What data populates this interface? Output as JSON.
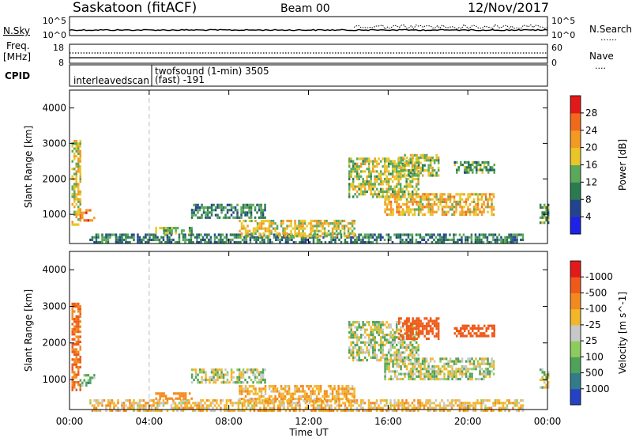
{
  "header": {
    "station": "Saskatoon (fitACF)",
    "beam": "Beam 00",
    "date": "12/Nov/2017"
  },
  "nsky_panel": {
    "left_label": "N.Sky",
    "left_tick_top": "10^5",
    "left_tick_bottom": "10^0",
    "right_tick_top": "10^5",
    "right_tick_bottom": "10^0",
    "right_label": "N.Search",
    "right_legend": "......"
  },
  "freq_panel": {
    "left_label": "Freq.",
    "left_unit": "[MHz]",
    "left_tick_top": "18",
    "left_tick_bottom": "8",
    "right_tick_top": "60",
    "right_tick_bottom": "0",
    "right_label": "Nave",
    "right_legend": "...."
  },
  "cpid_panel": {
    "label": "CPID",
    "programs": [
      {
        "name": "interleavedscan"
      },
      {
        "name": "twofsound (1-min) 3505"
      },
      {
        "name": "(fast) -191"
      }
    ]
  },
  "chart_data": [
    {
      "type": "heatmap",
      "quantity": "Power",
      "ylabel": "Slant Range [km]",
      "xlabel": "Time UT",
      "x_ticks": [
        "00:00",
        "04:00",
        "08:00",
        "12:00",
        "16:00",
        "20:00",
        "00:00"
      ],
      "y_ticks": [
        "1000",
        "2000",
        "3000",
        "4000"
      ],
      "ylim": [
        180,
        4500
      ],
      "xlim_hours": [
        0,
        24
      ],
      "colorbar": {
        "label": "Power [dB]",
        "ticks": [
          "4",
          "8",
          "12",
          "16",
          "20",
          "24",
          "28"
        ],
        "colors": [
          "#1e22e6",
          "#23438f",
          "#2c7a4f",
          "#5aa85a",
          "#e8c62a",
          "#f39a23",
          "#f06a1c",
          "#e31919"
        ]
      },
      "regions": [
        {
          "t": [
            0.1,
            0.5
          ],
          "r": [
            700,
            3100
          ],
          "value": 18
        },
        {
          "t": [
            0.5,
            1.2
          ],
          "r": [
            850,
            1150
          ],
          "value": 24
        },
        {
          "t": [
            1.0,
            22.8
          ],
          "r": [
            180,
            460
          ],
          "value": 10
        },
        {
          "t": [
            4.3,
            6.1
          ],
          "r": [
            480,
            650
          ],
          "value": 14
        },
        {
          "t": [
            6.1,
            9.8
          ],
          "r": [
            900,
            1300
          ],
          "value": 10
        },
        {
          "t": [
            8.5,
            14.3
          ],
          "r": [
            400,
            850
          ],
          "value": 18
        },
        {
          "t": [
            14.0,
            17.5
          ],
          "r": [
            1500,
            2600
          ],
          "value": 16
        },
        {
          "t": [
            15.8,
            21.3
          ],
          "r": [
            1000,
            1600
          ],
          "value": 20
        },
        {
          "t": [
            16.5,
            18.5
          ],
          "r": [
            2100,
            2700
          ],
          "value": 16
        },
        {
          "t": [
            19.3,
            21.3
          ],
          "r": [
            2200,
            2500
          ],
          "value": 12
        },
        {
          "t": [
            23.6,
            24.0
          ],
          "r": [
            800,
            1300
          ],
          "value": 12
        }
      ]
    },
    {
      "type": "heatmap",
      "quantity": "Velocity",
      "ylabel": "Slant Range [km]",
      "xlabel": "Time UT",
      "x_ticks": [
        "00:00",
        "04:00",
        "08:00",
        "12:00",
        "16:00",
        "20:00",
        "00:00"
      ],
      "y_ticks": [
        "1000",
        "2000",
        "3000",
        "4000"
      ],
      "ylim": [
        180,
        4500
      ],
      "xlim_hours": [
        0,
        24
      ],
      "colorbar": {
        "label": "Velocity [m s^-1]",
        "ticks": [
          "1000",
          "500",
          "100",
          "25",
          "-25",
          "-100",
          "-500",
          "-1000"
        ],
        "colors": [
          "#2542c4",
          "#317b8a",
          "#4fa259",
          "#8ccc5d",
          "#c8c8c8",
          "#f2b62a",
          "#f38a20",
          "#ef5a1a",
          "#e21a1a"
        ]
      },
      "regions": [
        {
          "t": [
            0.1,
            0.5
          ],
          "r": [
            700,
            3100
          ],
          "value": -300
        },
        {
          "t": [
            0.5,
            1.2
          ],
          "r": [
            850,
            1150
          ],
          "value": 50
        },
        {
          "t": [
            1.0,
            22.8
          ],
          "r": [
            180,
            460
          ],
          "value": -60
        },
        {
          "t": [
            4.3,
            6.1
          ],
          "r": [
            480,
            650
          ],
          "value": -200
        },
        {
          "t": [
            6.1,
            9.8
          ],
          "r": [
            900,
            1300
          ],
          "value": 0
        },
        {
          "t": [
            8.5,
            14.3
          ],
          "r": [
            400,
            850
          ],
          "value": -80
        },
        {
          "t": [
            14.0,
            17.5
          ],
          "r": [
            1500,
            2600
          ],
          "value": 0
        },
        {
          "t": [
            15.8,
            21.3
          ],
          "r": [
            1000,
            1600
          ],
          "value": 0
        },
        {
          "t": [
            16.5,
            18.5
          ],
          "r": [
            2100,
            2700
          ],
          "value": -400
        },
        {
          "t": [
            19.3,
            21.3
          ],
          "r": [
            2200,
            2500
          ],
          "value": -500
        },
        {
          "t": [
            23.6,
            24.0
          ],
          "r": [
            800,
            1300
          ],
          "value": 0
        }
      ]
    }
  ]
}
